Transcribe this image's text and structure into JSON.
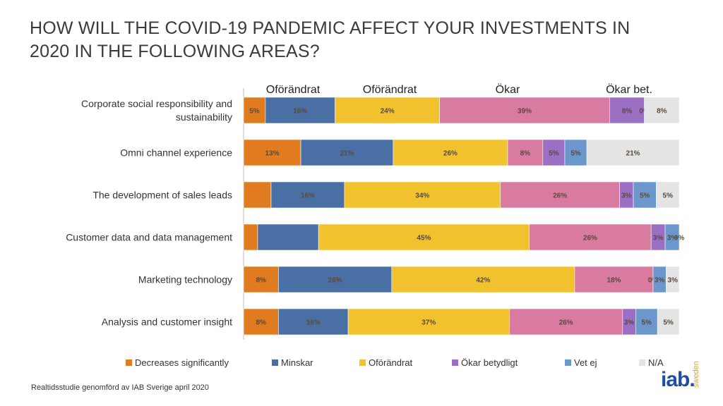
{
  "title_line1": "HOW WILL THE COVID-19 PANDEMIC AFFECT YOUR INVESTMENTS IN",
  "title_line2": "2020 IN THE FOLLOWING AREAS?",
  "footnote": "Realtidsstudie genomförd av IAB Sverige april 2020",
  "logo": {
    "main": "iab.",
    "sub": "sweden"
  },
  "chart_data": {
    "type": "bar",
    "orientation": "horizontal",
    "stacked": true,
    "normalized": true,
    "grid": false,
    "legend_position": "bottom",
    "column_headers": [
      "Oförändrat",
      "Oförändrat",
      "Ökar",
      "Ökar bet."
    ],
    "categories": [
      "Corporate social responsibility and sustainability",
      "Omni channel experience",
      "The development of sales leads",
      "Customer data and data management",
      "Marketing technology",
      "Analysis and customer insight"
    ],
    "series": [
      {
        "name": "Decreases significantly",
        "color": "#e07b20",
        "values": [
          5,
          13,
          6,
          3,
          8,
          8
        ],
        "labels": [
          "5%",
          "13%",
          "",
          "",
          "8%",
          "8%"
        ]
      },
      {
        "name": "Minskar",
        "color": "#4a6fa5",
        "values": [
          16,
          21,
          16,
          13,
          26,
          16
        ],
        "labels": [
          "16%",
          "21%",
          "16%",
          "",
          "26%",
          "16%"
        ]
      },
      {
        "name": "Oförändrat",
        "color": "#f2c22e",
        "values": [
          24,
          26,
          34,
          45,
          42,
          37
        ],
        "labels": [
          "24%",
          "26%",
          "34%",
          "45%",
          "42%",
          "37%"
        ]
      },
      {
        "name": "",
        "color": "#d97aa0",
        "values": [
          39,
          8,
          26,
          26,
          18,
          26
        ],
        "labels": [
          "39%",
          "8%",
          "26%",
          "26%",
          "18%",
          "26%"
        ]
      },
      {
        "name": "Ökar betydligt",
        "color": "#9b6fc4",
        "values": [
          8,
          5,
          3,
          3,
          0,
          3
        ],
        "labels": [
          "8%",
          "5%",
          "3%",
          "3%",
          "0%",
          "3%"
        ]
      },
      {
        "name": "Vet ej",
        "color": "#6b97cc",
        "values": [
          0,
          5,
          5,
          3,
          3,
          5
        ],
        "labels": [
          "0%",
          "5%",
          "5%",
          "3%",
          "3%",
          "5%"
        ]
      },
      {
        "name": "N/A",
        "color": "#e4e4e4",
        "values": [
          8,
          21,
          5,
          0,
          3,
          5
        ],
        "labels": [
          "8%",
          "21%",
          "5%",
          "0%",
          "3%",
          "5%"
        ]
      }
    ]
  }
}
